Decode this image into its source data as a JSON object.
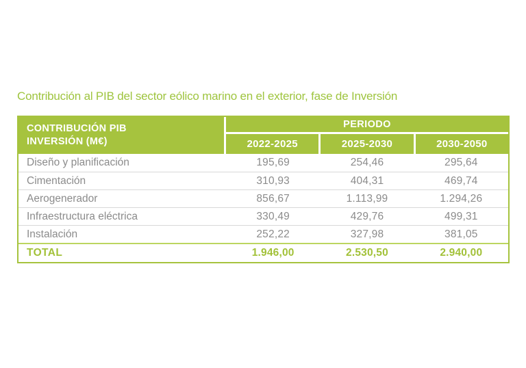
{
  "page": {
    "title": "Contribución al PIB del sector eólico marino en el exterior, fase de Inversión"
  },
  "colors": {
    "header_green": "#a6c33e",
    "title_green": "#9ec43e",
    "total_green": "#a2c138",
    "body_gray": "#8b8b8b",
    "separator_gray": "#d8d8d8",
    "total_separator_green": "#bcd55f",
    "header_text": "#ffffff"
  },
  "table": {
    "corner_header_line1": "CONTRIBUCIÓN PIB",
    "corner_header_line2": "INVERSIÓN (M€)",
    "group_header": "PERIODO",
    "period_columns": [
      "2022-2025",
      "2025-2030",
      "2030-2050"
    ],
    "rows": [
      {
        "label": "Diseño y planificación",
        "values": [
          "195,69",
          "254,46",
          "295,64"
        ]
      },
      {
        "label": "Cimentación",
        "values": [
          "310,93",
          "404,31",
          "469,74"
        ]
      },
      {
        "label": "Aerogenerador",
        "values": [
          "856,67",
          "1.113,99",
          "1.294,26"
        ]
      },
      {
        "label": "Infraestructura eléctrica",
        "values": [
          "330,49",
          "429,76",
          "499,31"
        ]
      },
      {
        "label": "Instalación",
        "values": [
          "252,22",
          "327,98",
          "381,05"
        ]
      }
    ],
    "total_row": {
      "label": "TOTAL",
      "values": [
        "1.946,00",
        "2.530,50",
        "2.940,00"
      ]
    }
  },
  "chart_data": {
    "type": "table",
    "title": "Contribución al PIB del sector eólico marino en el exterior, fase de Inversión",
    "unit": "M€",
    "column_group": "PERIODO",
    "columns": [
      "CONTRIBUCIÓN PIB INVERSIÓN (M€)",
      "2022-2025",
      "2025-2030",
      "2030-2050"
    ],
    "rows": [
      [
        "Diseño y planificación",
        195.69,
        254.46,
        295.64
      ],
      [
        "Cimentación",
        310.93,
        404.31,
        469.74
      ],
      [
        "Aerogenerador",
        856.67,
        1113.99,
        1294.26
      ],
      [
        "Infraestructura eléctrica",
        330.49,
        429.76,
        499.31
      ],
      [
        "Instalación",
        252.22,
        327.98,
        381.05
      ],
      [
        "TOTAL",
        1946.0,
        2530.5,
        2940.0
      ]
    ]
  }
}
